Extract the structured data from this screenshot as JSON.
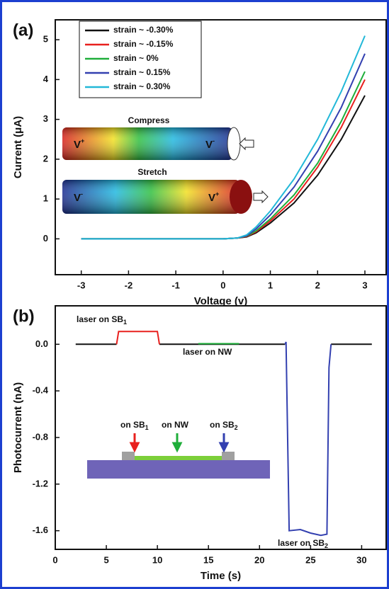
{
  "chart_data": [
    {
      "type": "line",
      "panel_label": "(a)",
      "xlabel": "Voltage (v)",
      "ylabel": "Current (μA)",
      "xlim": [
        -3.55,
        3.45
      ],
      "ylim": [
        -0.9,
        5.5
      ],
      "xticks": [
        -3,
        -2,
        -1,
        0,
        1,
        2,
        3
      ],
      "yticks": [
        0,
        1,
        2,
        3,
        4,
        5
      ],
      "x": [
        -3,
        -2,
        -1,
        0,
        0.3,
        0.5,
        0.7,
        1,
        1.5,
        2,
        2.5,
        3
      ],
      "series": [
        {
          "name": "strain ~ -0.30%",
          "color": "#111111",
          "values": [
            0,
            0,
            0,
            0,
            0.02,
            0.05,
            0.15,
            0.4,
            0.9,
            1.6,
            2.5,
            3.6
          ]
        },
        {
          "name": "strain ~ -0.15%",
          "color": "#e8201e",
          "values": [
            0,
            0,
            0,
            0,
            0.02,
            0.06,
            0.18,
            0.45,
            1.0,
            1.8,
            2.8,
            4.0
          ]
        },
        {
          "name": "strain ~ 0%",
          "color": "#1fae3a",
          "values": [
            0,
            0,
            0,
            0,
            0.02,
            0.07,
            0.2,
            0.5,
            1.1,
            1.9,
            2.95,
            4.2
          ]
        },
        {
          "name": "strain ~ 0.15%",
          "color": "#3340b0",
          "values": [
            0,
            0,
            0,
            0,
            0.02,
            0.08,
            0.25,
            0.6,
            1.3,
            2.2,
            3.3,
            4.65
          ]
        },
        {
          "name": "strain ~ 0.30%",
          "color": "#22b8d8",
          "values": [
            0,
            0,
            0,
            0,
            0.02,
            0.1,
            0.3,
            0.7,
            1.5,
            2.5,
            3.7,
            5.1
          ]
        }
      ],
      "legend": "upper left",
      "inset": [
        {
          "text": "Compress"
        },
        {
          "text": "V",
          "sup": "+"
        },
        {
          "text": "V",
          "sup": "-"
        },
        {
          "text": "Stretch"
        },
        {
          "text": "V",
          "sup": "-"
        },
        {
          "text": "V",
          "sup": "+"
        }
      ]
    },
    {
      "type": "line",
      "panel_label": "(b)",
      "xlabel": "Time (s)",
      "ylabel": "Photocurrent (nA)",
      "xlim": [
        0,
        32.4
      ],
      "ylim": [
        -1.76,
        0.33
      ],
      "xticks": [
        0,
        5,
        10,
        15,
        20,
        25,
        30
      ],
      "yticks": [
        {
          "value": 0,
          "label": "0.0"
        },
        -0.4,
        -0.8,
        -1.2,
        -1.6
      ],
      "x": [
        2,
        6,
        6.2,
        10,
        10.2,
        14,
        18,
        22.5,
        22.6,
        22.9,
        24,
        25,
        26,
        26.6,
        26.8,
        27,
        31
      ],
      "series": [
        {
          "color": "#111111",
          "values": [
            0,
            0,
            null,
            null,
            0,
            0,
            0,
            0,
            null,
            null,
            null,
            null,
            null,
            null,
            null,
            0,
            0
          ]
        },
        {
          "color": "#e8201e",
          "values": [
            null,
            0,
            0.11,
            0.11,
            0,
            null,
            null,
            null,
            null,
            null,
            null,
            null,
            null,
            null,
            null,
            null,
            null
          ]
        },
        {
          "color": "#1fae3a",
          "values": [
            null,
            null,
            null,
            null,
            null,
            0.005,
            0.005,
            null,
            null,
            null,
            null,
            null,
            null,
            null,
            null,
            null,
            null
          ]
        },
        {
          "color": "#3340b0",
          "values": [
            null,
            null,
            null,
            null,
            null,
            null,
            null,
            0,
            0.02,
            -1.6,
            -1.59,
            -1.62,
            -1.64,
            -1.63,
            -0.2,
            0,
            null
          ]
        }
      ],
      "annotations": [
        {
          "text": "laser on SB",
          "sub": "1"
        },
        {
          "text": "laser on NW"
        },
        {
          "text": "laser on SB",
          "sub": "2"
        }
      ],
      "inset": [
        {
          "text": "on SB",
          "sub": "1"
        },
        {
          "text": "on NW"
        },
        {
          "text": "on SB",
          "sub": "2"
        }
      ]
    }
  ]
}
